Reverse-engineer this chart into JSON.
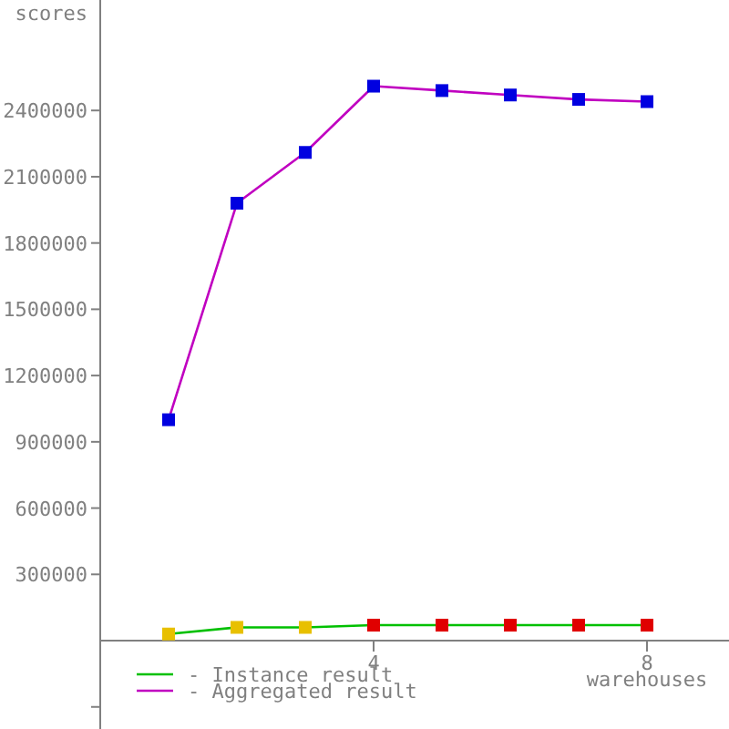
{
  "chart_data": {
    "type": "line",
    "xlabel": "warehouses",
    "ylabel": "scores",
    "x": [
      1,
      2,
      3,
      4,
      5,
      6,
      7,
      8
    ],
    "xlim": [
      0,
      9.2
    ],
    "xticks": [
      4,
      8
    ],
    "ylim": [
      -400000,
      2900000
    ],
    "yticks": [
      {
        "value": -300000,
        "label": null
      },
      300000,
      600000,
      900000,
      1200000,
      1500000,
      1800000,
      2100000,
      2400000
    ],
    "marker": "square",
    "legend": "bottom left",
    "grid": false,
    "series": [
      {
        "name": "- Instance result",
        "color": "#00c000",
        "colors": [
          "#e8c000",
          "#e8c000",
          "#e8c000",
          "#e00000",
          "#e00000",
          "#e00000",
          "#e00000",
          "#e00000"
        ],
        "values": [
          30000,
          60000,
          60000,
          70000,
          70000,
          70000,
          70000,
          70000
        ]
      },
      {
        "name": "- Aggregated result",
        "color": "#c000c0",
        "colors": [
          "#0000e0",
          "#0000e0",
          "#0000e0",
          "#0000e0",
          "#0000e0",
          "#0000e0",
          "#0000e0",
          "#0000e0"
        ],
        "values": [
          1000000,
          1980000,
          2210000,
          2510000,
          2490000,
          2470000,
          2450000,
          2440000
        ]
      }
    ]
  }
}
